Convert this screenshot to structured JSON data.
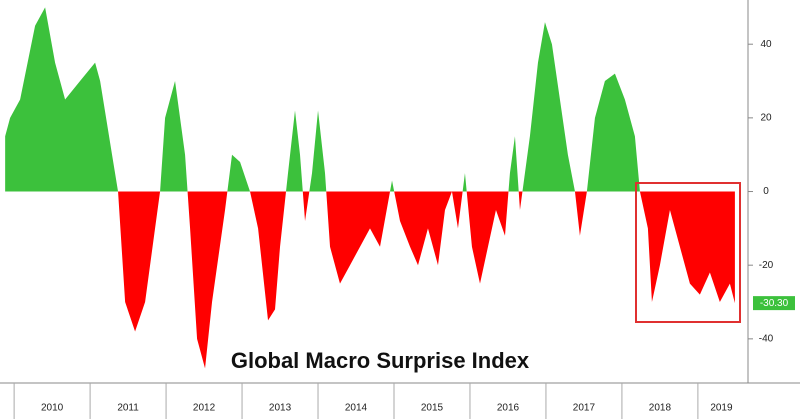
{
  "chart_data": {
    "type": "area",
    "title": "Global Macro Surprise Index",
    "x": [
      2009.882,
      2009.947,
      2010.079,
      2010.276,
      2010.408,
      2010.539,
      2010.671,
      2010.868,
      2011.066,
      2011.132,
      2011.289,
      2011.368,
      2011.461,
      2011.592,
      2011.724,
      2011.855,
      2011.921,
      2011.987,
      2012.118,
      2012.25,
      2012.316,
      2012.408,
      2012.513,
      2012.605,
      2012.776,
      2012.868,
      2012.974,
      2013.105,
      2013.211,
      2013.342,
      2013.434,
      2013.5,
      2013.605,
      2013.697,
      2013.763,
      2013.829,
      2013.921,
      2014.0,
      2014.092,
      2014.158,
      2014.289,
      2014.421,
      2014.553,
      2014.684,
      2014.816,
      2014.974,
      2015.079,
      2015.211,
      2015.316,
      2015.447,
      2015.579,
      2015.671,
      2015.763,
      2015.842,
      2015.934,
      2016.026,
      2016.132,
      2016.237,
      2016.342,
      2016.461,
      2016.526,
      2016.592,
      2016.658,
      2016.789,
      2016.895,
      2016.987,
      2017.079,
      2017.184,
      2017.289,
      2017.382,
      2017.447,
      2017.539,
      2017.645,
      2017.776,
      2017.908,
      2018.039,
      2018.171,
      2018.237,
      2018.342,
      2018.395,
      2018.5,
      2018.632,
      2018.763,
      2018.895,
      2019.026,
      2019.158,
      2019.289,
      2019.421,
      2019.487
    ],
    "values": [
      15,
      20,
      25,
      45,
      50,
      35,
      25,
      30,
      35,
      30,
      10,
      0,
      -30,
      -38,
      -30,
      -10,
      0,
      20,
      30,
      10,
      -10,
      -40,
      -48,
      -30,
      -5,
      10,
      8,
      0,
      -10,
      -35,
      -32,
      -15,
      5,
      22,
      10,
      -8,
      5,
      22,
      5,
      -15,
      -25,
      -20,
      -15,
      -10,
      -15,
      3,
      -8,
      -15,
      -20,
      -10,
      -20,
      -5,
      0,
      -10,
      5,
      -15,
      -25,
      -15,
      -5,
      -12,
      5,
      15,
      -5,
      15,
      35,
      46,
      40,
      25,
      10,
      0,
      -12,
      0,
      20,
      30,
      32,
      25,
      15,
      0,
      -10,
      -30,
      -20,
      -5,
      -15,
      -25,
      -28,
      -22,
      -30,
      -25,
      -30.3
    ],
    "positive_color": "#3cc13c",
    "negative_color": "#ff0000",
    "last_value": {
      "value": -30.3,
      "label": "-30.30"
    },
    "xlim": [
      2009.88,
      2019.62
    ],
    "xticks": [
      {
        "value": 2010,
        "label": "2010"
      },
      {
        "value": 2011,
        "label": "2011"
      },
      {
        "value": 2012,
        "label": "2012"
      },
      {
        "value": 2013,
        "label": "2013"
      },
      {
        "value": 2014,
        "label": "2014"
      },
      {
        "value": 2015,
        "label": "2015"
      },
      {
        "value": 2016,
        "label": "2016"
      },
      {
        "value": 2017,
        "label": "2017"
      },
      {
        "value": 2018,
        "label": "2018"
      },
      {
        "value": 2019,
        "label": "2019"
      }
    ],
    "ylim": [
      -49,
      52
    ],
    "yticks": [
      -40,
      -20,
      0,
      20,
      40
    ]
  }
}
